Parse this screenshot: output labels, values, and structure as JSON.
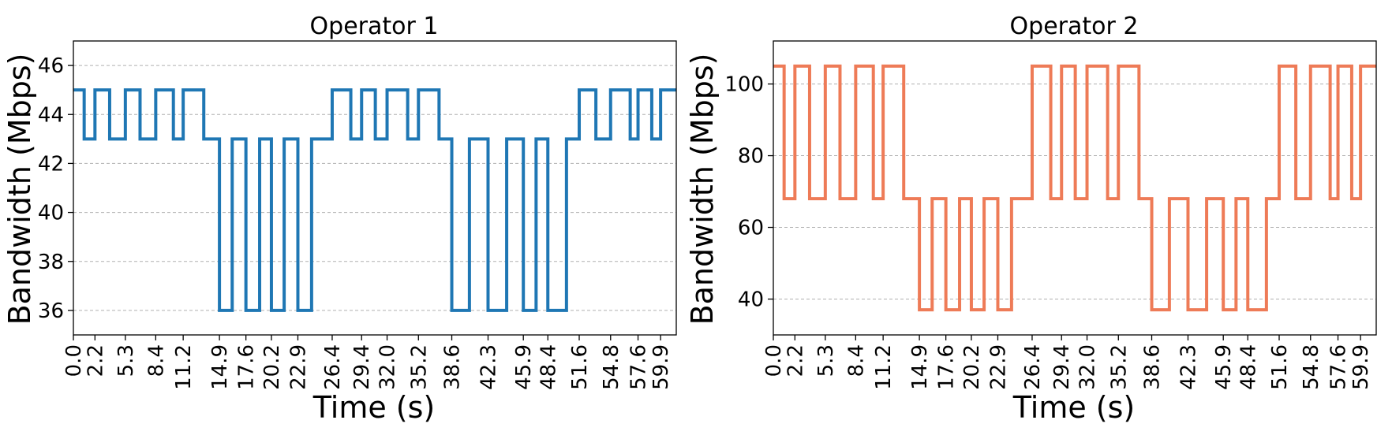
{
  "chart_data": [
    {
      "type": "line",
      "step": "post",
      "title": "Operator 1",
      "xlabel": "Time (s)",
      "ylabel": "Bandwidth (Mbps)",
      "color": "#1f77b4",
      "xlim": [
        0,
        61.5
      ],
      "ylim": [
        35,
        47
      ],
      "yticks": [
        36,
        38,
        40,
        42,
        44,
        46
      ],
      "grid": "y, dashed",
      "x_tick_values": [
        0.0,
        2.2,
        5.3,
        8.4,
        11.2,
        14.9,
        17.6,
        20.2,
        22.9,
        26.4,
        29.4,
        32.0,
        35.2,
        38.6,
        42.3,
        45.9,
        48.4,
        51.6,
        54.8,
        57.6,
        59.9
      ],
      "x_tick_labels": [
        "0.0",
        "2.2",
        "5.3",
        "8.4",
        "11.2",
        "14.9",
        "17.6",
        "20.2",
        "22.9",
        "26.4",
        "29.4",
        "32.0",
        "35.2",
        "38.6",
        "42.3",
        "45.9",
        "48.4",
        "51.6",
        "54.8",
        "57.6",
        "59.9"
      ],
      "x": [
        0.0,
        1.1,
        2.2,
        3.7,
        5.3,
        6.8,
        8.4,
        10.2,
        11.2,
        13.3,
        14.9,
        16.2,
        17.6,
        19.0,
        20.2,
        21.5,
        22.9,
        24.3,
        26.4,
        28.3,
        29.4,
        30.8,
        32.0,
        34.1,
        35.2,
        37.3,
        38.6,
        40.4,
        42.3,
        44.2,
        45.9,
        47.2,
        48.4,
        50.3,
        51.6,
        53.3,
        54.8,
        56.8,
        57.6,
        59.0,
        59.9
      ],
      "y": [
        45,
        43,
        45,
        43,
        45,
        43,
        45,
        43,
        45,
        43,
        36,
        43,
        36,
        43,
        36,
        43,
        36,
        43,
        45,
        43,
        45,
        43,
        45,
        43,
        45,
        43,
        36,
        43,
        36,
        43,
        36,
        43,
        36,
        43,
        45,
        43,
        45,
        43,
        45,
        43,
        45
      ]
    },
    {
      "type": "line",
      "step": "post",
      "title": "Operator 2",
      "xlabel": "Time (s)",
      "ylabel": "Bandwidth (Mbps)",
      "color": "#ee7b57",
      "xlim": [
        0,
        61.5
      ],
      "ylim": [
        30,
        112
      ],
      "yticks": [
        40,
        60,
        80,
        100
      ],
      "grid": "y, dashed",
      "x_tick_values": [
        0.0,
        2.2,
        5.3,
        8.4,
        11.2,
        14.9,
        17.6,
        20.2,
        22.9,
        26.4,
        29.4,
        32.0,
        35.2,
        38.6,
        42.3,
        45.9,
        48.4,
        51.6,
        54.8,
        57.6,
        59.9
      ],
      "x_tick_labels": [
        "0.0",
        "2.2",
        "5.3",
        "8.4",
        "11.2",
        "14.9",
        "17.6",
        "20.2",
        "22.9",
        "26.4",
        "29.4",
        "32.0",
        "35.2",
        "38.6",
        "42.3",
        "45.9",
        "48.4",
        "51.6",
        "54.8",
        "57.6",
        "59.9"
      ],
      "x": [
        0.0,
        1.1,
        2.2,
        3.7,
        5.3,
        6.8,
        8.4,
        10.2,
        11.2,
        13.3,
        14.9,
        16.2,
        17.6,
        19.0,
        20.2,
        21.5,
        22.9,
        24.3,
        26.4,
        28.3,
        29.4,
        30.8,
        32.0,
        34.1,
        35.2,
        37.3,
        38.6,
        40.4,
        42.3,
        44.2,
        45.9,
        47.2,
        48.4,
        50.3,
        51.6,
        53.3,
        54.8,
        56.8,
        57.6,
        59.0,
        59.9
      ],
      "y": [
        105,
        68,
        105,
        68,
        105,
        68,
        105,
        68,
        105,
        68,
        37,
        68,
        37,
        68,
        37,
        68,
        37,
        68,
        105,
        68,
        105,
        68,
        105,
        68,
        105,
        68,
        37,
        68,
        37,
        68,
        37,
        68,
        37,
        68,
        105,
        68,
        105,
        68,
        105,
        68,
        105
      ]
    }
  ]
}
